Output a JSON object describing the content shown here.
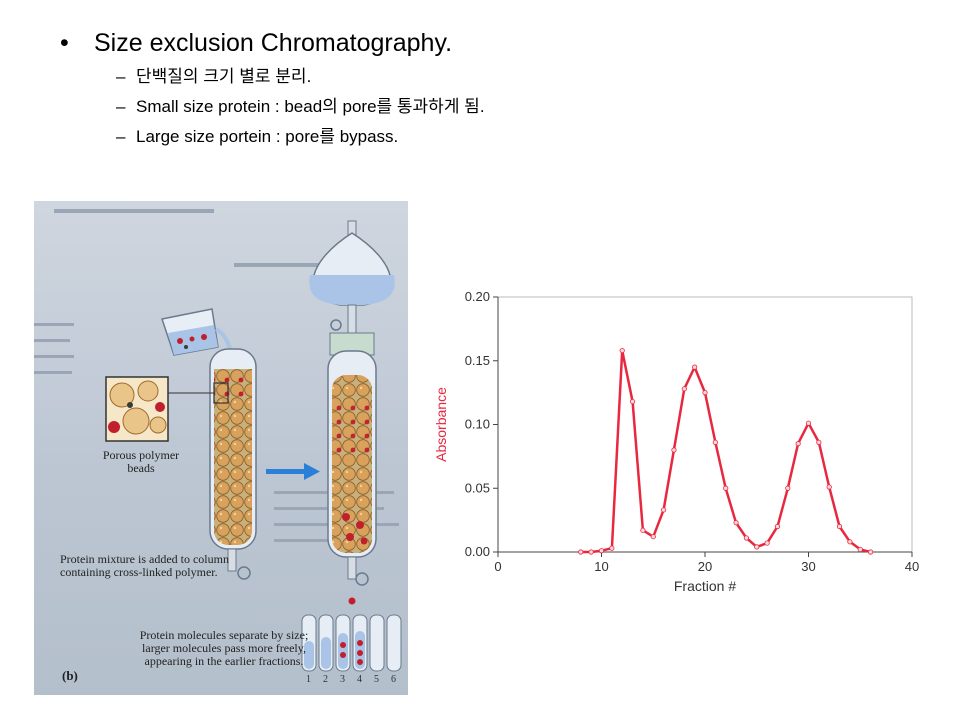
{
  "slide": {
    "title": "Size exclusion Chromatography.",
    "bullet_glyph": "•",
    "dash_glyph": "–",
    "sub_bullets": [
      "단백질의 크기 별로 분리.",
      "Small size protein : bead의 pore를 통과하게 됨.",
      "Large size portein : pore를 bypass."
    ]
  },
  "figure": {
    "beads_caption": "Porous polymer beads",
    "mixture_caption": "Protein mixture is added to column containing cross-linked polymer.",
    "separate_caption": "Protein molecules separate by size; larger molecules pass more freely, appearing in the earlier fractions.",
    "panel_label": "(b)",
    "tube_numbers": [
      "1",
      "2",
      "3",
      "4",
      "5",
      "6"
    ],
    "colors": {
      "bead": "#d9a25c",
      "protein": "#c0202c",
      "liquid": "#a9c4e6",
      "arrow": "#2a7fd6"
    }
  },
  "chart_data": {
    "type": "line",
    "xlabel": "Fraction #",
    "ylabel": "Absorbance",
    "xlim": [
      0,
      40
    ],
    "ylim": [
      0,
      0.2
    ],
    "xticks": [
      0,
      10,
      20,
      30,
      40
    ],
    "yticks": [
      "0.00",
      "0.05",
      "0.10",
      "0.15",
      "0.20"
    ],
    "grid": false,
    "color": "#e8283f",
    "x": [
      8,
      9,
      10,
      11,
      12,
      13,
      14,
      15,
      16,
      17,
      18,
      19,
      20,
      21,
      22,
      23,
      24,
      25,
      26,
      27,
      28,
      29,
      30,
      31,
      32,
      33,
      34,
      35,
      36
    ],
    "y": [
      0.0,
      0.0,
      0.001,
      0.003,
      0.158,
      0.118,
      0.017,
      0.012,
      0.033,
      0.08,
      0.128,
      0.145,
      0.125,
      0.086,
      0.05,
      0.023,
      0.011,
      0.004,
      0.007,
      0.02,
      0.05,
      0.085,
      0.101,
      0.086,
      0.051,
      0.02,
      0.008,
      0.002,
      0.0
    ]
  }
}
